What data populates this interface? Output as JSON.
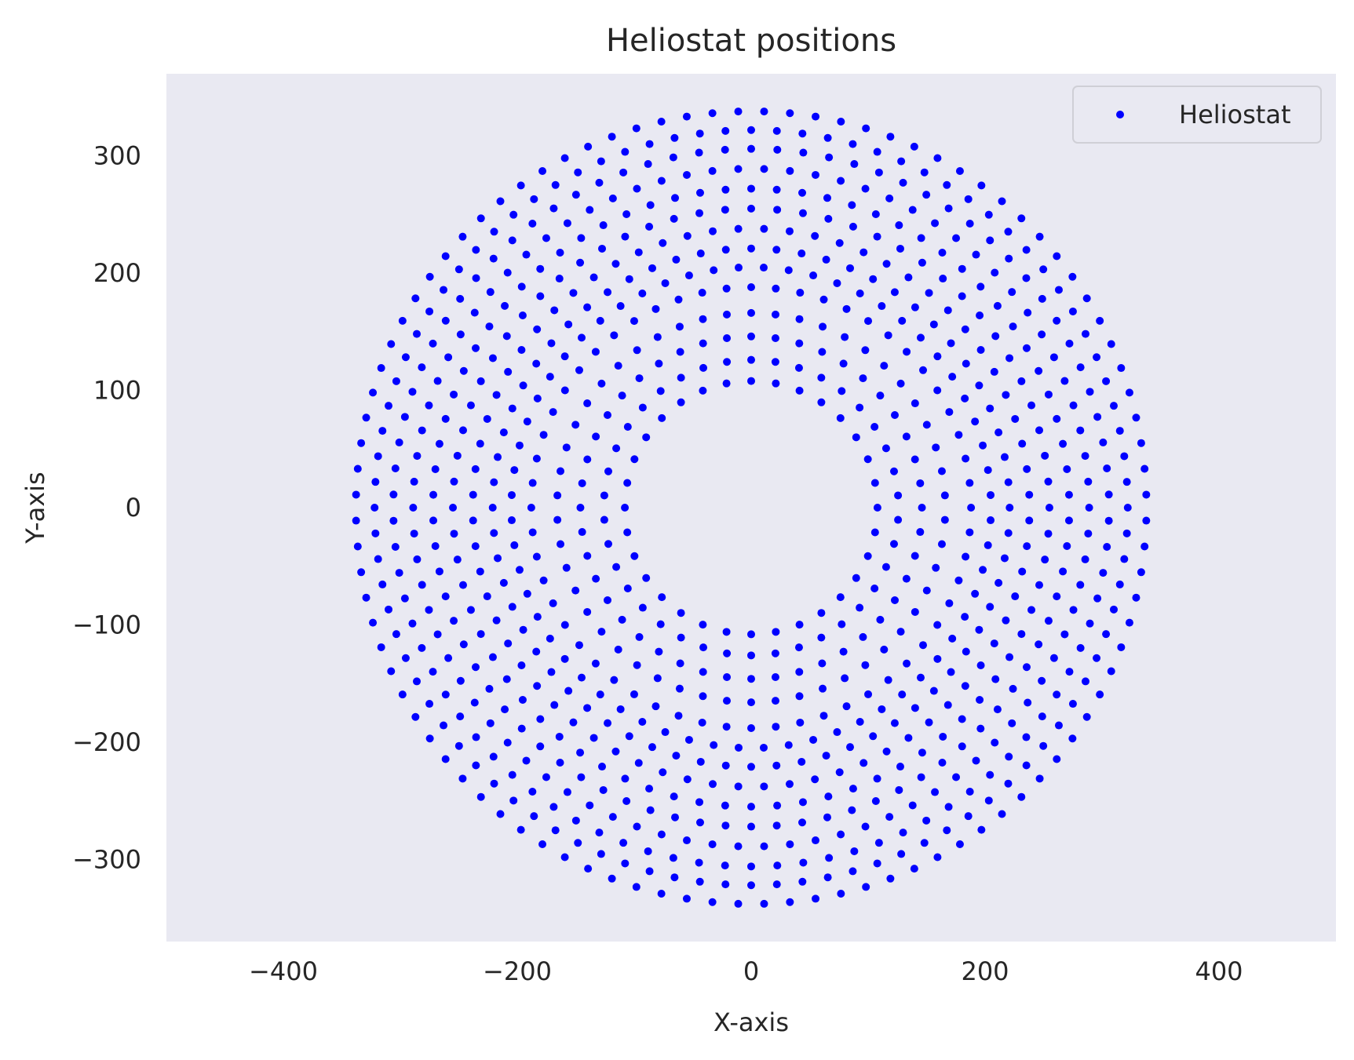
{
  "chart_data": {
    "type": "scatter",
    "title": "Heliostat positions",
    "xlabel": "X-axis",
    "ylabel": "Y-axis",
    "xlim": [
      -500,
      500
    ],
    "ylim": [
      -370,
      370
    ],
    "xticks": [
      -400,
      -200,
      0,
      200,
      400
    ],
    "xtick_labels": [
      "−400",
      "−200",
      "0",
      "200",
      "400"
    ],
    "yticks": [
      -300,
      -200,
      -100,
      0,
      100,
      200,
      300
    ],
    "ytick_labels": [
      "−300",
      "−200",
      "−100",
      "0",
      "100",
      "200",
      "300"
    ],
    "grid": false,
    "legend": {
      "position": "top-right",
      "entries": [
        "Heliostat"
      ]
    },
    "colors": {
      "plot_background": "#e9e9f2",
      "marker": "#0000ff"
    },
    "series": [
      {
        "name": "Heliostat",
        "marker": "circle",
        "rings": [
          {
            "radius": 108,
            "count": 32
          },
          {
            "radius": 126,
            "count": 38
          },
          {
            "radius": 146,
            "count": 44
          },
          {
            "radius": 166,
            "count": 50
          },
          {
            "radius": 188,
            "count": 56
          },
          {
            "radius": 205,
            "count": 60
          },
          {
            "radius": 221,
            "count": 64
          },
          {
            "radius": 238,
            "count": 68
          },
          {
            "radius": 255,
            "count": 72
          },
          {
            "radius": 272,
            "count": 78
          },
          {
            "radius": 289,
            "count": 82
          },
          {
            "radius": 306,
            "count": 86
          },
          {
            "radius": 322,
            "count": 92
          },
          {
            "radius": 338,
            "count": 96
          }
        ]
      }
    ]
  }
}
